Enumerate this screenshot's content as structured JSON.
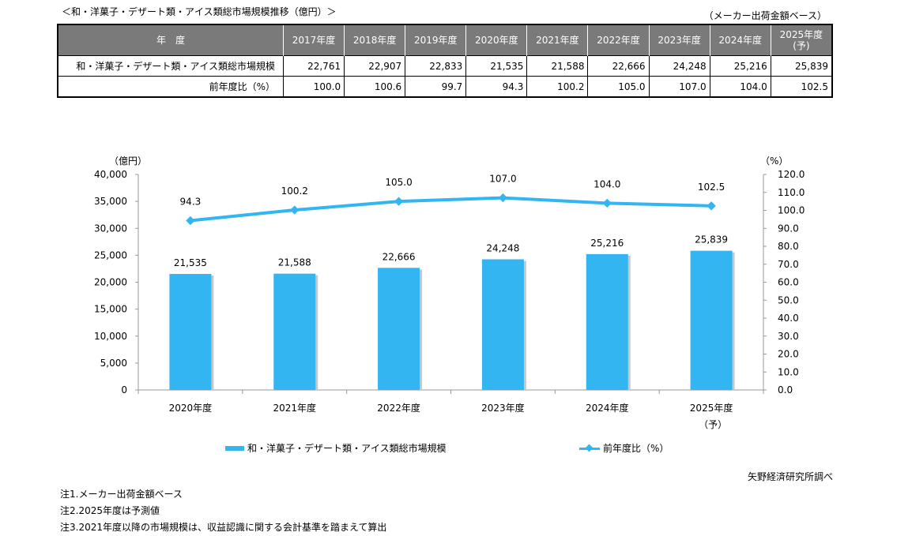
{
  "table": {
    "title": "＜和・洋菓子・デザート類・アイス類総市場規模推移（億円）＞",
    "unit_note": "（メーカー出荷金額ベース）",
    "header_label": "年　度",
    "years": [
      "2017年度",
      "2018年度",
      "2019年度",
      "2020年度",
      "2021年度",
      "2022年度",
      "2023年度",
      "2024年度",
      "2025年度\n(予)"
    ],
    "rows": [
      {
        "label": "和・洋菓子・デザート類・アイス類総市場規模",
        "values": [
          "22,761",
          "22,907",
          "22,833",
          "21,535",
          "21,588",
          "22,666",
          "24,248",
          "25,216",
          "25,839"
        ]
      },
      {
        "label": "前年度比（%）",
        "values": [
          "100.0",
          "100.6",
          "99.7",
          "94.3",
          "100.2",
          "105.0",
          "107.0",
          "104.0",
          "102.5"
        ]
      }
    ]
  },
  "chart_data": {
    "type": "bar+line",
    "categories": [
      "2020年度",
      "2021年度",
      "2022年度",
      "2023年度",
      "2024年度",
      "2025年度"
    ],
    "category_sublabels": [
      "",
      "",
      "",
      "",
      "",
      "（予）"
    ],
    "series": [
      {
        "name": "和・洋菓子・デザート類・アイス類総市場規模",
        "type": "bar",
        "axis": "left",
        "values": [
          21535,
          21588,
          22666,
          24248,
          25216,
          25839
        ],
        "labels": [
          "21,535",
          "21,588",
          "22,666",
          "24,248",
          "25,216",
          "25,839"
        ]
      },
      {
        "name": "前年度比（%）",
        "type": "line",
        "axis": "right",
        "values": [
          94.3,
          100.2,
          105.0,
          107.0,
          104.0,
          102.5
        ],
        "labels": [
          "94.3",
          "100.2",
          "105.0",
          "107.0",
          "104.0",
          "102.5"
        ]
      }
    ],
    "left_axis": {
      "label": "（億円）",
      "min": 0,
      "max": 40000,
      "step": 5000,
      "ticks": [
        "0",
        "5,000",
        "10,000",
        "15,000",
        "20,000",
        "25,000",
        "30,000",
        "35,000",
        "40,000"
      ]
    },
    "right_axis": {
      "label": "（%）",
      "min": 0,
      "max": 120,
      "step": 10,
      "ticks": [
        "0.0",
        "10.0",
        "20.0",
        "30.0",
        "40.0",
        "50.0",
        "60.0",
        "70.0",
        "80.0",
        "90.0",
        "100.0",
        "110.0",
        "120.0"
      ]
    },
    "color": "#33B5F2",
    "legend_position": "bottom"
  },
  "source": "矢野経済研究所調べ",
  "notes": [
    "注1.メーカー出荷金額ベース",
    "注2.2025年度は予測値",
    "注3.2021年度以降の市場規模は、収益認識に関する会計基準を踏まえて算出"
  ]
}
